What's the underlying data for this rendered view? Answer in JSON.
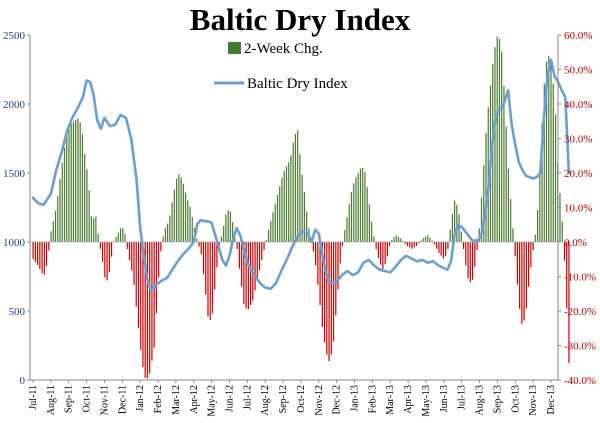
{
  "chart_data": {
    "type": "bar+line",
    "title": "Baltic Dry Index",
    "legend": {
      "position": "top-center",
      "entries": [
        {
          "name": "2-Week Chg.",
          "kind": "bar"
        },
        {
          "name": "Baltic Dry Index",
          "kind": "line"
        }
      ]
    },
    "y_left": {
      "range": [
        0,
        2500
      ],
      "ticks": [
        "0",
        "500",
        "1000",
        "1500",
        "2000",
        "2500"
      ],
      "tick_values": [
        0,
        500,
        1000,
        1500,
        2000,
        2500
      ]
    },
    "y_right": {
      "range": [
        -40,
        60
      ],
      "unit": "%",
      "ticks": [
        "-40.0%",
        "-30.0%",
        "-20.0%",
        "-10.0%",
        "0.0%",
        "10.0%",
        "20.0%",
        "30.0%",
        "40.0%",
        "50.0%",
        "60.0%"
      ],
      "tick_values": [
        -40,
        -30,
        -20,
        -10,
        0,
        10,
        20,
        30,
        40,
        50,
        60
      ]
    },
    "x_labels": [
      "Jul-11",
      "Aug-11",
      "Sep-11",
      "Oct-11",
      "Nov-11",
      "Dec-11",
      "Jan-12",
      "Feb-12",
      "Mar-12",
      "Apr-12",
      "May-12",
      "Jun-12",
      "Jul-12",
      "Aug-12",
      "Sep-12",
      "Oct-12",
      "Nov-12",
      "Dec-12",
      "Jan-13",
      "Feb-13",
      "Mar-13",
      "Apr-13",
      "May-13",
      "Jun-13",
      "Jul-13",
      "Aug-13",
      "Sep-13",
      "Oct-13",
      "Nov-13",
      "Dec-13"
    ],
    "series": [
      {
        "name": "Baltic Dry Index",
        "axis": "left",
        "color": "#6a9fd4",
        "points": [
          [
            0,
            1320
          ],
          [
            0.3,
            1280
          ],
          [
            0.6,
            1270
          ],
          [
            1.0,
            1350
          ],
          [
            1.3,
            1520
          ],
          [
            1.6,
            1650
          ],
          [
            1.9,
            1800
          ],
          [
            2.2,
            1900
          ],
          [
            2.5,
            1970
          ],
          [
            2.8,
            2050
          ],
          [
            3.0,
            2170
          ],
          [
            3.2,
            2160
          ],
          [
            3.4,
            2060
          ],
          [
            3.6,
            1880
          ],
          [
            3.8,
            1820
          ],
          [
            4.0,
            1900
          ],
          [
            4.3,
            1840
          ],
          [
            4.6,
            1850
          ],
          [
            4.9,
            1920
          ],
          [
            5.2,
            1900
          ],
          [
            5.5,
            1750
          ],
          [
            5.8,
            1450
          ],
          [
            6.0,
            1100
          ],
          [
            6.2,
            900
          ],
          [
            6.4,
            730
          ],
          [
            6.6,
            650
          ],
          [
            6.9,
            690
          ],
          [
            7.2,
            720
          ],
          [
            7.5,
            740
          ],
          [
            7.8,
            800
          ],
          [
            8.1,
            860
          ],
          [
            8.4,
            910
          ],
          [
            8.7,
            950
          ],
          [
            9.0,
            1000
          ],
          [
            9.2,
            1130
          ],
          [
            9.4,
            1160
          ],
          [
            9.6,
            1150
          ],
          [
            9.8,
            1150
          ],
          [
            10.0,
            1140
          ],
          [
            10.2,
            1050
          ],
          [
            10.4,
            960
          ],
          [
            10.6,
            870
          ],
          [
            10.8,
            830
          ],
          [
            11.0,
            900
          ],
          [
            11.2,
            1020
          ],
          [
            11.4,
            1100
          ],
          [
            11.6,
            1050
          ],
          [
            11.8,
            950
          ],
          [
            12.0,
            850
          ],
          [
            12.2,
            800
          ],
          [
            12.4,
            760
          ],
          [
            12.6,
            720
          ],
          [
            12.8,
            690
          ],
          [
            13.0,
            670
          ],
          [
            13.3,
            660
          ],
          [
            13.6,
            700
          ],
          [
            13.9,
            790
          ],
          [
            14.2,
            870
          ],
          [
            14.5,
            960
          ],
          [
            14.8,
            1040
          ],
          [
            15.1,
            1080
          ],
          [
            15.4,
            1060
          ],
          [
            15.6,
            1000
          ],
          [
            15.8,
            1090
          ],
          [
            16.0,
            1060
          ],
          [
            16.2,
            900
          ],
          [
            16.4,
            780
          ],
          [
            16.6,
            710
          ],
          [
            16.8,
            700
          ],
          [
            17.0,
            710
          ],
          [
            17.3,
            760
          ],
          [
            17.6,
            790
          ],
          [
            17.9,
            760
          ],
          [
            18.2,
            780
          ],
          [
            18.5,
            850
          ],
          [
            18.8,
            870
          ],
          [
            19.1,
            830
          ],
          [
            19.4,
            800
          ],
          [
            19.7,
            790
          ],
          [
            20.0,
            780
          ],
          [
            20.3,
            820
          ],
          [
            20.6,
            870
          ],
          [
            20.9,
            900
          ],
          [
            21.2,
            880
          ],
          [
            21.5,
            860
          ],
          [
            21.8,
            870
          ],
          [
            22.1,
            850
          ],
          [
            22.4,
            860
          ],
          [
            22.7,
            830
          ],
          [
            23.0,
            810
          ],
          [
            23.2,
            800
          ],
          [
            23.4,
            860
          ],
          [
            23.6,
            1050
          ],
          [
            23.8,
            1120
          ],
          [
            24.0,
            1110
          ],
          [
            24.3,
            1060
          ],
          [
            24.6,
            1010
          ],
          [
            24.9,
            1010
          ],
          [
            25.1,
            1050
          ],
          [
            25.3,
            1200
          ],
          [
            25.5,
            1400
          ],
          [
            25.7,
            1700
          ],
          [
            25.9,
            1900
          ],
          [
            26.1,
            1960
          ],
          [
            26.3,
            1980
          ],
          [
            26.6,
            2100
          ],
          [
            26.8,
            1850
          ],
          [
            27.0,
            1700
          ],
          [
            27.2,
            1580
          ],
          [
            27.4,
            1520
          ],
          [
            27.6,
            1480
          ],
          [
            27.8,
            1470
          ],
          [
            28.0,
            1460
          ],
          [
            28.2,
            1470
          ],
          [
            28.4,
            1500
          ],
          [
            28.6,
            1900
          ],
          [
            28.8,
            2200
          ],
          [
            29.0,
            2320
          ],
          [
            29.2,
            2200
          ],
          [
            29.4,
            2160
          ],
          [
            29.6,
            2100
          ],
          [
            29.8,
            2050
          ],
          [
            30.0,
            1500
          ]
        ]
      },
      {
        "name": "2-Week Chg.",
        "axis": "right",
        "pos_color": "#4a7a30",
        "neg_color": "#cc0000",
        "x_range": [
          0,
          30
        ],
        "count": 240,
        "knots": [
          [
            0.0,
            -5
          ],
          [
            0.3,
            -7
          ],
          [
            0.6,
            -10
          ],
          [
            0.8,
            -6
          ],
          [
            1.0,
            3
          ],
          [
            1.3,
            10
          ],
          [
            1.6,
            22
          ],
          [
            1.9,
            32
          ],
          [
            2.1,
            34
          ],
          [
            2.3,
            35
          ],
          [
            2.5,
            36
          ],
          [
            2.7,
            34
          ],
          [
            2.9,
            25
          ],
          [
            3.1,
            18
          ],
          [
            3.2,
            10
          ],
          [
            3.3,
            6
          ],
          [
            3.5,
            8
          ],
          [
            3.7,
            0
          ],
          [
            3.9,
            -6
          ],
          [
            4.0,
            -10
          ],
          [
            4.1,
            -12
          ],
          [
            4.3,
            -8
          ],
          [
            4.5,
            0
          ],
          [
            4.7,
            2
          ],
          [
            4.9,
            4
          ],
          [
            5.1,
            4
          ],
          [
            5.3,
            -3
          ],
          [
            5.6,
            -10
          ],
          [
            5.9,
            -25
          ],
          [
            6.1,
            -35
          ],
          [
            6.3,
            -40
          ],
          [
            6.5,
            -39
          ],
          [
            6.8,
            -30
          ],
          [
            7.0,
            -12
          ],
          [
            7.2,
            0
          ],
          [
            7.4,
            4
          ],
          [
            7.6,
            6
          ],
          [
            7.8,
            12
          ],
          [
            8.0,
            18
          ],
          [
            8.2,
            20
          ],
          [
            8.4,
            17
          ],
          [
            8.6,
            13
          ],
          [
            8.8,
            10
          ],
          [
            9.0,
            5
          ],
          [
            9.2,
            0
          ],
          [
            9.4,
            -3
          ],
          [
            9.6,
            -12
          ],
          [
            9.8,
            -22
          ],
          [
            10.0,
            -23
          ],
          [
            10.2,
            -12
          ],
          [
            10.4,
            -2
          ],
          [
            10.6,
            3
          ],
          [
            10.8,
            8
          ],
          [
            11.0,
            10
          ],
          [
            11.2,
            5
          ],
          [
            11.4,
            -1
          ],
          [
            11.6,
            -10
          ],
          [
            11.8,
            -18
          ],
          [
            12.0,
            -20
          ],
          [
            12.3,
            -17
          ],
          [
            12.6,
            -10
          ],
          [
            12.9,
            -3
          ],
          [
            13.2,
            4
          ],
          [
            13.5,
            10
          ],
          [
            13.8,
            16
          ],
          [
            14.0,
            20
          ],
          [
            14.2,
            22
          ],
          [
            14.4,
            24
          ],
          [
            14.6,
            30
          ],
          [
            14.8,
            33
          ],
          [
            15.0,
            22
          ],
          [
            15.2,
            14
          ],
          [
            15.4,
            5
          ],
          [
            15.6,
            0
          ],
          [
            15.8,
            -6
          ],
          [
            16.0,
            -15
          ],
          [
            16.2,
            -25
          ],
          [
            16.4,
            -32
          ],
          [
            16.6,
            -35
          ],
          [
            16.8,
            -30
          ],
          [
            17.0,
            -18
          ],
          [
            17.2,
            -6
          ],
          [
            17.4,
            2
          ],
          [
            17.6,
            8
          ],
          [
            17.8,
            14
          ],
          [
            18.0,
            18
          ],
          [
            18.2,
            20
          ],
          [
            18.4,
            22
          ],
          [
            18.6,
            20
          ],
          [
            18.8,
            12
          ],
          [
            19.0,
            4
          ],
          [
            19.2,
            -2
          ],
          [
            19.4,
            -6
          ],
          [
            19.6,
            -8
          ],
          [
            19.8,
            -5
          ],
          [
            20.0,
            0
          ],
          [
            20.3,
            2
          ],
          [
            20.6,
            1
          ],
          [
            20.9,
            -1
          ],
          [
            21.2,
            -2
          ],
          [
            21.5,
            -1
          ],
          [
            21.8,
            1
          ],
          [
            22.1,
            2
          ],
          [
            22.4,
            0
          ],
          [
            22.7,
            -3
          ],
          [
            23.0,
            -5
          ],
          [
            23.2,
            -3
          ],
          [
            23.4,
            6
          ],
          [
            23.6,
            12
          ],
          [
            23.8,
            10
          ],
          [
            24.0,
            2
          ],
          [
            24.2,
            -6
          ],
          [
            24.4,
            -12
          ],
          [
            24.6,
            -11
          ],
          [
            24.8,
            -5
          ],
          [
            25.0,
            5
          ],
          [
            25.2,
            20
          ],
          [
            25.4,
            35
          ],
          [
            25.6,
            45
          ],
          [
            25.8,
            55
          ],
          [
            26.0,
            60
          ],
          [
            26.2,
            58
          ],
          [
            26.4,
            42
          ],
          [
            26.6,
            22
          ],
          [
            26.8,
            8
          ],
          [
            27.0,
            -5
          ],
          [
            27.2,
            -18
          ],
          [
            27.4,
            -25
          ],
          [
            27.6,
            -20
          ],
          [
            27.8,
            -10
          ],
          [
            28.0,
            -2
          ],
          [
            28.2,
            5
          ],
          [
            28.4,
            25
          ],
          [
            28.6,
            45
          ],
          [
            28.8,
            55
          ],
          [
            29.0,
            52
          ],
          [
            29.2,
            42
          ],
          [
            29.4,
            20
          ],
          [
            29.6,
            8
          ],
          [
            29.8,
            -10
          ],
          [
            30.0,
            -35
          ]
        ]
      }
    ]
  }
}
